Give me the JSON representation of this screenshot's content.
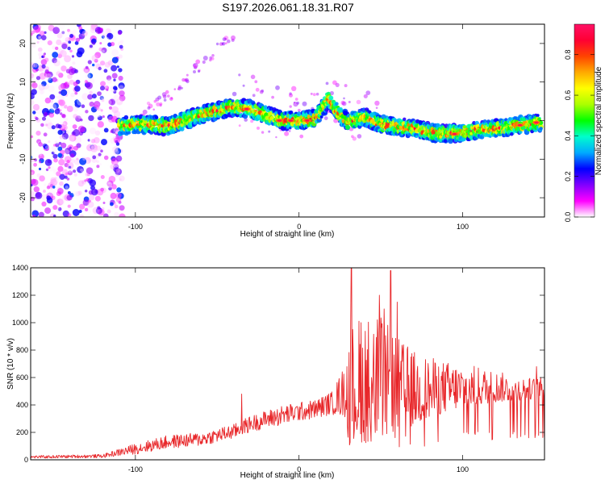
{
  "title": "S197.2026.061.18.31.R07",
  "chart_data": [
    {
      "type": "heatmap",
      "name": "spectrogram",
      "title": "S197.2026.061.18.31.R07",
      "xlabel": "Height of straight line (km)",
      "ylabel": "Frequency (Hz)",
      "xlim": [
        -164,
        150
      ],
      "ylim": [
        -25,
        25
      ],
      "x_ticks": [
        -100,
        0,
        100
      ],
      "y_ticks": [
        20,
        10,
        0,
        -10,
        -20
      ],
      "ridge": {
        "x": [
          -110,
          -100,
          -90,
          -80,
          -70,
          -60,
          -50,
          -40,
          -30,
          -20,
          -10,
          0,
          10,
          18,
          22,
          30,
          40,
          50,
          60,
          70,
          80,
          90,
          100,
          110,
          120,
          130,
          140,
          148
        ],
        "y": [
          -1.5,
          -1,
          -1,
          -1.5,
          0,
          1.5,
          2.5,
          3.5,
          3,
          1.5,
          0,
          0,
          0.5,
          5.5,
          3,
          -0.5,
          1,
          -1,
          -1.5,
          -2,
          -3,
          -3.5,
          -3,
          -2.5,
          -2,
          -1.5,
          -1,
          -0.5
        ]
      },
      "noise_region_x": [
        -164,
        -108
      ]
    },
    {
      "type": "line",
      "name": "snr",
      "xlabel": "Height of straight line (km)",
      "ylabel": "SNR (10 * v/v)",
      "xlim": [
        -164,
        150
      ],
      "ylim": [
        0,
        1400
      ],
      "x_ticks": [
        -100,
        0,
        100
      ],
      "y_ticks": [
        0,
        200,
        400,
        600,
        800,
        1000,
        1200,
        1400
      ],
      "series": [
        {
          "name": "SNR",
          "color": "#e8272a",
          "envelope_x": [
            -164,
            -120,
            -100,
            -80,
            -60,
            -40,
            -30,
            -20,
            -10,
            0,
            10,
            20,
            28,
            32,
            40,
            50,
            60,
            70,
            80,
            90,
            100,
            110,
            120,
            130,
            140,
            150
          ],
          "envelope_low": [
            10,
            15,
            40,
            80,
            100,
            150,
            200,
            230,
            250,
            280,
            300,
            330,
            300,
            150,
            120,
            150,
            200,
            250,
            300,
            350,
            380,
            400,
            420,
            430,
            440,
            450
          ],
          "envelope_high": [
            30,
            40,
            120,
            180,
            200,
            260,
            320,
            360,
            400,
            420,
            440,
            500,
            700,
            1000,
            1100,
            1050,
            900,
            800,
            750,
            720,
            700,
            680,
            650,
            620,
            600,
            600
          ],
          "peaks": [
            {
              "x": -35,
              "y": 480
            },
            {
              "x": 32,
              "y": 1400
            },
            {
              "x": 56,
              "y": 1380
            },
            {
              "x": 49,
              "y": 1200
            },
            {
              "x": 60,
              "y": 1150
            },
            {
              "x": 52,
              "y": 1100
            },
            {
              "x": 38,
              "y": 1000
            },
            {
              "x": 145,
              "y": 680
            }
          ]
        }
      ]
    }
  ],
  "colorbar": {
    "label": "Normalized spectral amplitude",
    "range": [
      0,
      0.95
    ],
    "ticks": [
      0.0,
      0.2,
      0.4,
      0.6,
      0.8
    ],
    "tick_labels": [
      "0.0",
      "0.2",
      "0.4",
      "0.6",
      "0.8"
    ],
    "colors": [
      "#ffffff",
      "#ff00ff",
      "#8000ff",
      "#0000ff",
      "#00aaff",
      "#00ffcc",
      "#00ff00",
      "#aaff00",
      "#ffff00",
      "#ffaa00",
      "#ff4400",
      "#ff0033",
      "#ff1166"
    ]
  }
}
